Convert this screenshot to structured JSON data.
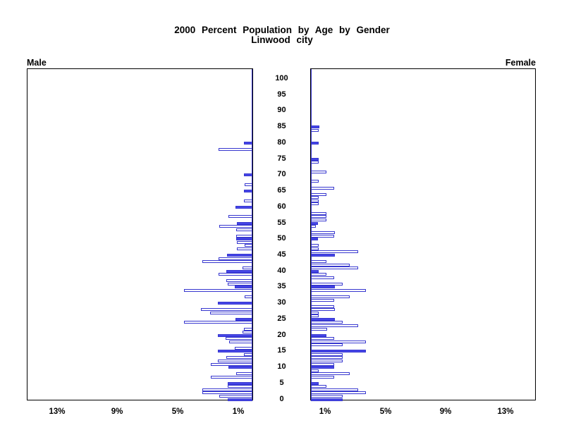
{
  "title": {
    "line1": "2000 Percent Population by Age by Gender",
    "line2": "Linwood city"
  },
  "labels": {
    "male": "Male",
    "female": "Female"
  },
  "axis": {
    "male_tick_labels": [
      "13%",
      "9%",
      "5%",
      "1%"
    ],
    "male_tick_pcts": [
      13,
      9,
      5,
      1
    ],
    "female_tick_labels": [
      "1%",
      "5%",
      "9%",
      "13%"
    ],
    "female_tick_pcts": [
      1,
      5,
      9,
      13
    ],
    "age_tick_labels": [
      100,
      95,
      90,
      85,
      80,
      75,
      70,
      65,
      60,
      55,
      50,
      45,
      40,
      35,
      30,
      25,
      20,
      15,
      10,
      5,
      0
    ]
  },
  "colors": {
    "bar_fill": "#4646e8",
    "bar_outline": "#3737cf",
    "frame": "#000000",
    "background": "#ffffff"
  },
  "chart_data": {
    "type": "bar",
    "subtype": "population-pyramid",
    "title": "2000 Percent Population by Age by Gender",
    "subtitle": "Linwood city",
    "unit": "percent of total population",
    "age_axis": {
      "min": 0,
      "max": 100,
      "label_interval": 5
    },
    "pct_axis": {
      "min": 0,
      "max": 15,
      "ticks": [
        1,
        5,
        9,
        13
      ]
    },
    "filled_rule": "ages divisible by 5 are solid filled bars; all other ages are white bars with blue outline; ages not listed have no bar (zero)",
    "male": [
      {
        "age": 0,
        "pct": 1.64
      },
      {
        "age": 1,
        "pct": 2.2
      },
      {
        "age": 2,
        "pct": 3.34
      },
      {
        "age": 3,
        "pct": 3.34
      },
      {
        "age": 4,
        "pct": 1.64
      },
      {
        "age": 5,
        "pct": 1.64
      },
      {
        "age": 7,
        "pct": 2.76
      },
      {
        "age": 8,
        "pct": 1.07
      },
      {
        "age": 10,
        "pct": 1.6
      },
      {
        "age": 11,
        "pct": 2.78
      },
      {
        "age": 12,
        "pct": 2.27
      },
      {
        "age": 13,
        "pct": 1.71
      },
      {
        "age": 14,
        "pct": 0.58
      },
      {
        "age": 15,
        "pct": 2.27
      },
      {
        "age": 16,
        "pct": 1.16
      },
      {
        "age": 18,
        "pct": 1.55
      },
      {
        "age": 19,
        "pct": 1.76
      },
      {
        "age": 20,
        "pct": 2.27
      },
      {
        "age": 21,
        "pct": 0.66
      },
      {
        "age": 22,
        "pct": 0.55
      },
      {
        "age": 24,
        "pct": 4.54
      },
      {
        "age": 25,
        "pct": 1.13
      },
      {
        "age": 27,
        "pct": 2.82
      },
      {
        "age": 28,
        "pct": 3.4
      },
      {
        "age": 30,
        "pct": 2.27
      },
      {
        "age": 32,
        "pct": 0.5
      },
      {
        "age": 34,
        "pct": 4.54
      },
      {
        "age": 35,
        "pct": 1.18
      },
      {
        "age": 36,
        "pct": 1.65
      },
      {
        "age": 37,
        "pct": 1.71
      },
      {
        "age": 39,
        "pct": 2.26
      },
      {
        "age": 40,
        "pct": 1.75
      },
      {
        "age": 41,
        "pct": 0.64
      },
      {
        "age": 43,
        "pct": 3.33
      },
      {
        "age": 44,
        "pct": 2.23
      },
      {
        "age": 45,
        "pct": 1.68
      },
      {
        "age": 47,
        "pct": 1.05
      },
      {
        "age": 48,
        "pct": 0.5
      },
      {
        "age": 49,
        "pct": 1.05
      },
      {
        "age": 50,
        "pct": 1.08
      },
      {
        "age": 51,
        "pct": 1.08
      },
      {
        "age": 53,
        "pct": 1.08
      },
      {
        "age": 54,
        "pct": 2.18
      },
      {
        "age": 55,
        "pct": 1.05
      },
      {
        "age": 57,
        "pct": 1.6
      },
      {
        "age": 60,
        "pct": 1.1
      },
      {
        "age": 62,
        "pct": 0.55
      },
      {
        "age": 65,
        "pct": 0.55
      },
      {
        "age": 67,
        "pct": 0.5
      },
      {
        "age": 70,
        "pct": 0.55
      },
      {
        "age": 78,
        "pct": 2.25
      },
      {
        "age": 80,
        "pct": 0.58
      }
    ],
    "female": [
      {
        "age": 0,
        "pct": 2.1
      },
      {
        "age": 1,
        "pct": 2.1
      },
      {
        "age": 2,
        "pct": 3.64
      },
      {
        "age": 3,
        "pct": 3.12
      },
      {
        "age": 4,
        "pct": 1.05
      },
      {
        "age": 5,
        "pct": 0.5
      },
      {
        "age": 7,
        "pct": 1.57
      },
      {
        "age": 8,
        "pct": 2.59
      },
      {
        "age": 9,
        "pct": 0.5
      },
      {
        "age": 10,
        "pct": 1.57
      },
      {
        "age": 11,
        "pct": 1.57
      },
      {
        "age": 12,
        "pct": 2.1
      },
      {
        "age": 13,
        "pct": 2.1
      },
      {
        "age": 14,
        "pct": 2.1
      },
      {
        "age": 15,
        "pct": 3.64
      },
      {
        "age": 17,
        "pct": 2.1
      },
      {
        "age": 18,
        "pct": 3.64
      },
      {
        "age": 19,
        "pct": 1.57
      },
      {
        "age": 20,
        "pct": 1.05
      },
      {
        "age": 22,
        "pct": 1.08
      },
      {
        "age": 23,
        "pct": 3.12
      },
      {
        "age": 24,
        "pct": 2.1
      },
      {
        "age": 25,
        "pct": 1.6
      },
      {
        "age": 26,
        "pct": 0.5
      },
      {
        "age": 27,
        "pct": 0.5
      },
      {
        "age": 28,
        "pct": 1.6
      },
      {
        "age": 29,
        "pct": 1.57
      },
      {
        "age": 31,
        "pct": 1.57
      },
      {
        "age": 32,
        "pct": 2.59
      },
      {
        "age": 34,
        "pct": 3.67
      },
      {
        "age": 35,
        "pct": 1.6
      },
      {
        "age": 36,
        "pct": 2.1
      },
      {
        "age": 38,
        "pct": 1.57
      },
      {
        "age": 39,
        "pct": 1.05
      },
      {
        "age": 40,
        "pct": 0.53
      },
      {
        "age": 41,
        "pct": 3.12
      },
      {
        "age": 42,
        "pct": 2.59
      },
      {
        "age": 43,
        "pct": 1.05
      },
      {
        "age": 45,
        "pct": 1.6
      },
      {
        "age": 46,
        "pct": 3.12
      },
      {
        "age": 47,
        "pct": 0.53
      },
      {
        "age": 48,
        "pct": 0.53
      },
      {
        "age": 50,
        "pct": 0.47
      },
      {
        "age": 51,
        "pct": 1.57
      },
      {
        "age": 52,
        "pct": 1.6
      },
      {
        "age": 54,
        "pct": 0.34
      },
      {
        "age": 55,
        "pct": 0.47
      },
      {
        "age": 56,
        "pct": 1.05
      },
      {
        "age": 57,
        "pct": 1.05
      },
      {
        "age": 58,
        "pct": 1.05
      },
      {
        "age": 61,
        "pct": 0.53
      },
      {
        "age": 62,
        "pct": 0.53
      },
      {
        "age": 63,
        "pct": 0.53
      },
      {
        "age": 64,
        "pct": 1.05
      },
      {
        "age": 66,
        "pct": 1.57
      },
      {
        "age": 68,
        "pct": 0.53
      },
      {
        "age": 71,
        "pct": 1.05
      },
      {
        "age": 74,
        "pct": 0.53
      },
      {
        "age": 75,
        "pct": 0.53
      },
      {
        "age": 80,
        "pct": 0.53
      },
      {
        "age": 84,
        "pct": 0.53
      },
      {
        "age": 85,
        "pct": 0.58
      }
    ]
  }
}
